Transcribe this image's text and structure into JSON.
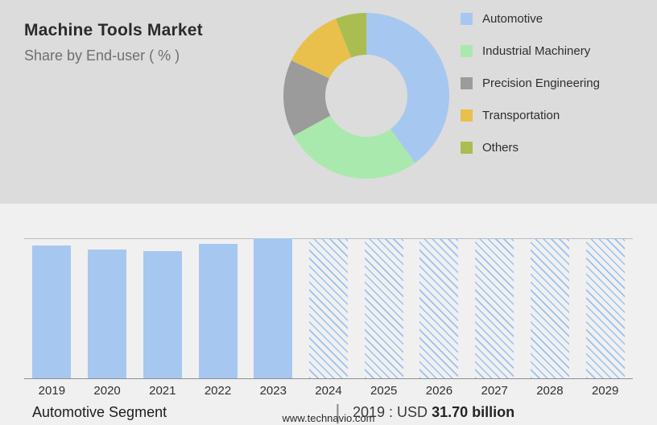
{
  "header": {
    "title": "Machine Tools Market",
    "subtitle": "Share by End-user ( % )"
  },
  "colors": {
    "top_bg": "#dcdcdc",
    "bottom_bg": "#f0f0f0",
    "bar_fill": "#a6c8f0",
    "gridline": "#bcbcbc",
    "axis": "#8f8f8f"
  },
  "chart_data": [
    {
      "type": "pie",
      "donut": true,
      "title": "Machine Tools Market",
      "subtitle": "Share by End-user ( % )",
      "labels": [
        "Automotive",
        "Industrial Machinery",
        "Precision Engineering",
        "Transportation",
        "Others"
      ],
      "values": [
        40,
        27,
        15,
        12,
        6
      ],
      "colors": [
        "#a6c8f0",
        "#a9e9ad",
        "#9b9b9b",
        "#e8c04b",
        "#a9bd51"
      ],
      "legend_position": "right"
    },
    {
      "type": "bar",
      "categories": [
        "2019",
        "2020",
        "2021",
        "2022",
        "2023",
        "2024",
        "2025",
        "2026",
        "2027",
        "2028",
        "2029"
      ],
      "values": [
        31.7,
        30.9,
        30.5,
        32.2,
        33.5,
        null,
        null,
        null,
        null,
        null,
        null
      ],
      "forecast_categories": [
        "2024",
        "2025",
        "2026",
        "2027",
        "2028",
        "2029"
      ],
      "forecast_style": "hatched-full-height",
      "ylabel": "USD billion",
      "ylim": [
        0,
        33.5
      ],
      "annotation": "2019 : USD 31.70 billion"
    }
  ],
  "footer": {
    "segment_label": "Automotive Segment",
    "divider": "|",
    "value_prefix": "2019 : USD",
    "value": "31.70 billion",
    "website": "www.technavio.com"
  }
}
